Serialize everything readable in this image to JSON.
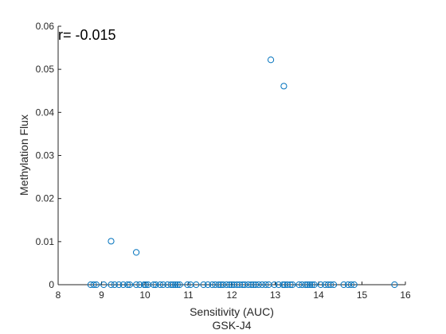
{
  "chart_data": {
    "type": "scatter",
    "title": "GSK-J4",
    "xlabel": "Sensitivity (AUC)",
    "ylabel": "Methylation Flux",
    "annotation": "r= -0.015",
    "xlim": [
      8,
      16
    ],
    "ylim": [
      0,
      0.06
    ],
    "xticks": [
      "8",
      "9",
      "10",
      "11",
      "12",
      "13",
      "14",
      "15",
      "16"
    ],
    "yticks": [
      "0",
      "0.01",
      "0.02",
      "0.03",
      "0.04",
      "0.05",
      "0.06"
    ],
    "grid": false,
    "marker_color": "#0072BD",
    "series": [
      {
        "x": [
          8.75,
          8.82,
          8.88,
          9.05,
          9.22,
          9.3,
          9.4,
          9.5,
          9.6,
          9.65,
          9.8,
          9.88,
          9.98,
          10.02,
          10.07,
          10.2,
          10.25,
          10.35,
          10.42,
          10.52,
          10.6,
          10.65,
          10.7,
          10.75,
          10.8,
          10.98,
          11.05,
          11.18,
          11.35,
          11.45,
          11.55,
          11.62,
          11.7,
          11.75,
          11.8,
          11.88,
          11.95,
          12.0,
          12.05,
          12.12,
          12.18,
          12.25,
          12.3,
          12.38,
          12.45,
          12.5,
          12.55,
          12.62,
          12.7,
          12.78,
          12.85,
          12.98,
          13.08,
          13.18,
          13.22,
          13.28,
          13.35,
          13.4,
          13.55,
          13.62,
          13.7,
          13.75,
          13.8,
          13.85,
          13.9,
          14.05,
          14.15,
          14.22,
          14.28,
          14.35,
          14.58,
          14.68,
          14.75,
          14.82,
          15.75,
          9.22,
          9.8,
          12.9,
          13.2
        ],
        "y": [
          0,
          0,
          0,
          0,
          0,
          0,
          0,
          0,
          0,
          0,
          0,
          0,
          0,
          0,
          0,
          0,
          0,
          0,
          0,
          0,
          0,
          0,
          0,
          0,
          0,
          0,
          0,
          0,
          0,
          0,
          0,
          0,
          0,
          0,
          0,
          0,
          0,
          0,
          0,
          0,
          0,
          0,
          0,
          0,
          0,
          0,
          0,
          0,
          0,
          0,
          0,
          0,
          0,
          0,
          0,
          0,
          0,
          0,
          0,
          0,
          0,
          0,
          0,
          0,
          0,
          0,
          0,
          0,
          0,
          0,
          0,
          0,
          0,
          0,
          0,
          0.0101,
          0.0075,
          0.0522,
          0.0461
        ]
      }
    ]
  }
}
